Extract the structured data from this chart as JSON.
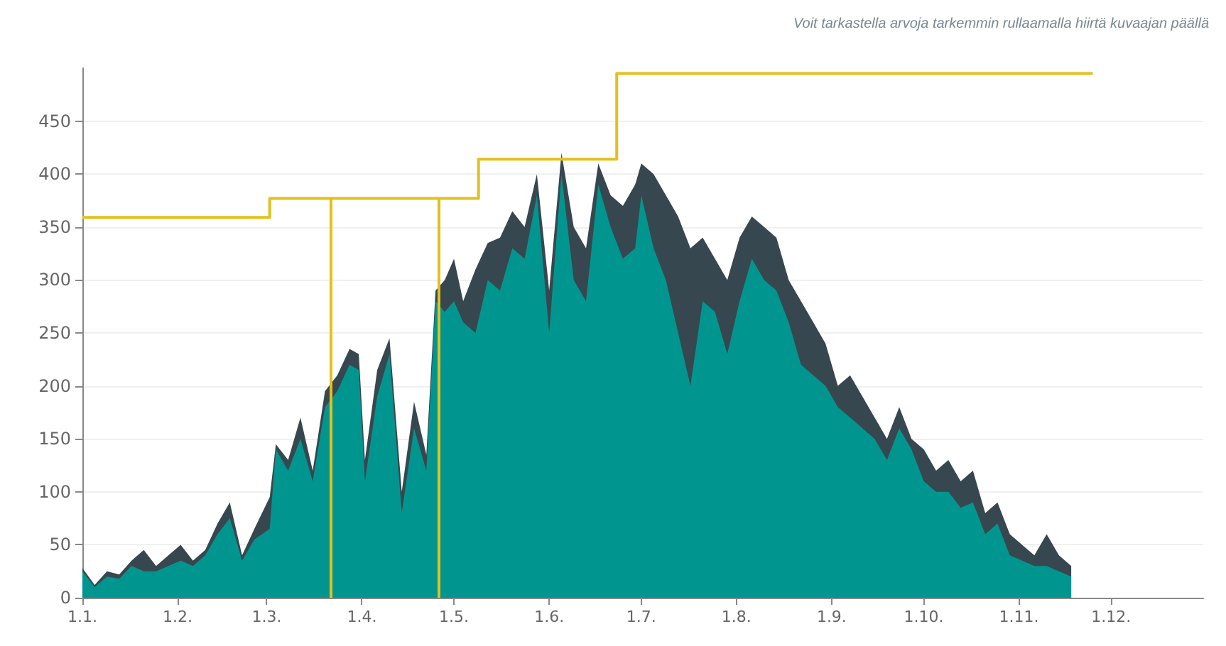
{
  "chart_data": {
    "type": "area",
    "annotations": [
      "Voit tarkastella arvoja tarkemmin rullaamalla hiirtä kuvaajan päällä"
    ],
    "x": [
      "--01-01",
      "--01-05",
      "--01-09",
      "--01-13",
      "--01-17",
      "--01-21",
      "--01-25",
      "--01-29",
      "--02-02",
      "--02-06",
      "--02-10",
      "--02-14",
      "--02-18",
      "--02-22",
      "--02-26",
      "--03-02",
      "--03-04",
      "--03-08",
      "--03-12",
      "--03-16",
      "--03-20",
      "--03-24",
      "--03-28",
      "--03-31",
      "--04-02",
      "--04-06",
      "--04-10",
      "--04-14",
      "--04-18",
      "--04-22",
      "--04-25",
      "--04-28",
      "--05-01",
      "--05-04",
      "--05-08",
      "--05-12",
      "--05-16",
      "--05-20",
      "--05-24",
      "--05-28",
      "--06-01",
      "--06-05",
      "--06-09",
      "--06-13",
      "--06-17",
      "--06-21",
      "--06-25",
      "--06-29",
      "--07-01",
      "--07-05",
      "--07-09",
      "--07-13",
      "--07-17",
      "--07-21",
      "--07-25",
      "--07-29",
      "--08-02",
      "--08-06",
      "--08-10",
      "--08-14",
      "--08-18",
      "--08-22",
      "--08-26",
      "--08-30",
      "--09-03",
      "--09-07",
      "--09-11",
      "--09-15",
      "--09-19",
      "--09-23",
      "--09-27",
      "--10-01",
      "--10-05",
      "--10-09",
      "--10-13",
      "--10-17",
      "--10-21",
      "--10-25",
      "--10-29",
      "--11-02",
      "--11-06",
      "--11-10",
      "--11-14",
      "--11-18"
    ],
    "series": [
      {
        "color": "#37474f",
        "values": [
          28,
          12,
          25,
          22,
          35,
          45,
          30,
          40,
          50,
          35,
          45,
          70,
          90,
          40,
          65,
          95,
          145,
          130,
          170,
          120,
          195,
          210,
          235,
          230,
          130,
          215,
          245,
          100,
          185,
          135,
          290,
          300,
          320,
          280,
          310,
          335,
          340,
          365,
          350,
          400,
          290,
          420,
          350,
          330,
          410,
          380,
          370,
          390,
          410,
          400,
          380,
          360,
          330,
          340,
          320,
          300,
          340,
          360,
          350,
          340,
          300,
          280,
          260,
          240,
          200,
          210,
          190,
          170,
          150,
          180,
          150,
          140,
          120,
          130,
          110,
          120,
          80,
          90,
          60,
          50,
          40,
          60,
          40,
          30
        ]
      },
      {
        "color": "#00968f",
        "values": [
          25,
          10,
          20,
          18,
          30,
          25,
          25,
          30,
          35,
          30,
          40,
          60,
          75,
          35,
          55,
          65,
          140,
          120,
          150,
          110,
          180,
          195,
          220,
          215,
          110,
          190,
          230,
          80,
          160,
          120,
          280,
          270,
          280,
          260,
          250,
          300,
          290,
          330,
          320,
          380,
          250,
          400,
          300,
          280,
          390,
          350,
          320,
          330,
          380,
          330,
          300,
          250,
          200,
          280,
          270,
          230,
          280,
          320,
          300,
          290,
          260,
          220,
          210,
          200,
          180,
          170,
          160,
          150,
          130,
          160,
          140,
          110,
          100,
          100,
          85,
          90,
          60,
          70,
          40,
          35,
          30,
          30,
          25,
          20
        ]
      },
      {
        "type": "step",
        "color": "#e3c01c",
        "x": [
          "--01-01",
          "--03-02",
          "--05-09",
          "--06-23",
          "--11-25"
        ],
        "values": [
          359,
          377,
          414,
          495,
          495
        ]
      }
    ],
    "ref_lines": [
      {
        "axis": "x",
        "value": "--03-22",
        "color": "#e3c01c"
      },
      {
        "axis": "x",
        "value": "--04-26",
        "color": "#e3c01c"
      }
    ],
    "xlim": [
      "--01-01",
      "--12-31"
    ],
    "xticks": [
      {
        "value": "--01-01",
        "label": "1.1."
      },
      {
        "value": "--02-01",
        "label": "1.2."
      },
      {
        "value": "--03-01",
        "label": "1.3."
      },
      {
        "value": "--04-01",
        "label": "1.4."
      },
      {
        "value": "--05-01",
        "label": "1.5."
      },
      {
        "value": "--06-01",
        "label": "1.6."
      },
      {
        "value": "--07-01",
        "label": "1.7."
      },
      {
        "value": "--08-01",
        "label": "1.8."
      },
      {
        "value": "--09-01",
        "label": "1.9."
      },
      {
        "value": "--10-01",
        "label": "1.10."
      },
      {
        "value": "--11-01",
        "label": "1.11."
      },
      {
        "value": "--12-01",
        "label": "1.12."
      }
    ],
    "ylim": [
      0,
      500
    ],
    "yticks": [
      0,
      50,
      100,
      150,
      200,
      250,
      300,
      350,
      400,
      450
    ],
    "grid": "y"
  }
}
